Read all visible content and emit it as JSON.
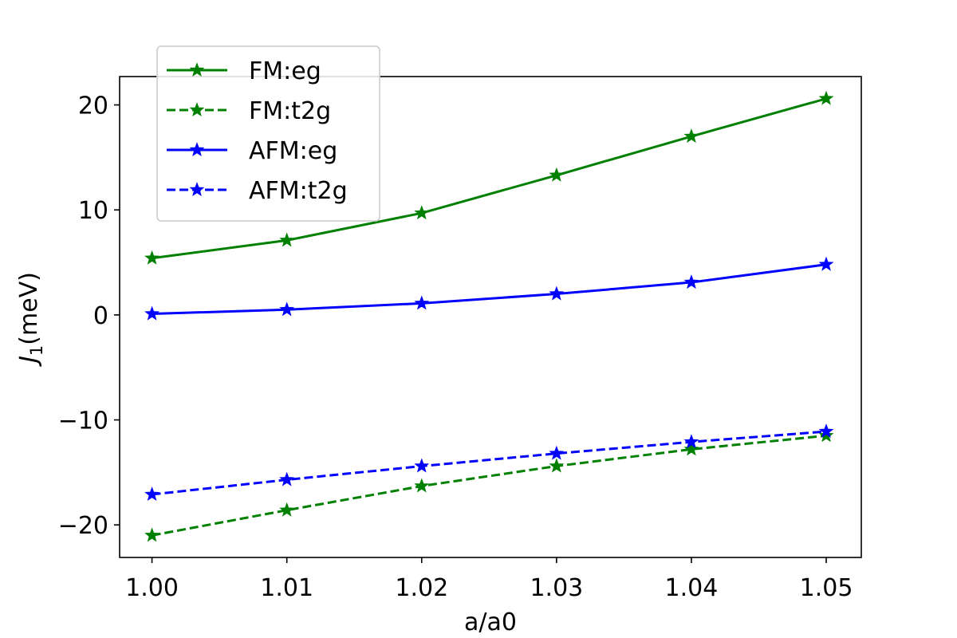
{
  "chart_data": {
    "type": "line",
    "title": "",
    "xlabel": "a/a0",
    "ylabel_main": "J",
    "ylabel_sub": "1",
    "ylabel_unit": "(meV)",
    "x": [
      1.0,
      1.01,
      1.02,
      1.03,
      1.04,
      1.05
    ],
    "xlim": [
      0.9976,
      1.0526
    ],
    "ylim": [
      -23.1,
      22.7
    ],
    "xticks": [
      1.0,
      1.01,
      1.02,
      1.03,
      1.04,
      1.05
    ],
    "xtick_labels": [
      "1.00",
      "1.01",
      "1.02",
      "1.03",
      "1.04",
      "1.05"
    ],
    "yticks": [
      20,
      10,
      0,
      -10,
      -20
    ],
    "ytick_labels": [
      "20",
      "10",
      "0",
      "−10",
      "−20"
    ],
    "grid": false,
    "legend_position": "top-left",
    "series": [
      {
        "name": "FM:eg",
        "color": "#008000",
        "style": "solid",
        "marker": "star",
        "values": [
          5.4,
          7.1,
          9.7,
          13.3,
          17.0,
          20.6
        ]
      },
      {
        "name": "FM:t2g",
        "color": "#008000",
        "style": "dashed",
        "marker": "star",
        "values": [
          -21.0,
          -18.6,
          -16.3,
          -14.4,
          -12.8,
          -11.5
        ]
      },
      {
        "name": "AFM:eg",
        "color": "#0000ff",
        "style": "solid",
        "marker": "star",
        "values": [
          0.1,
          0.5,
          1.1,
          2.0,
          3.1,
          4.8
        ]
      },
      {
        "name": "AFM:t2g",
        "color": "#0000ff",
        "style": "dashed",
        "marker": "star",
        "values": [
          -17.1,
          -15.7,
          -14.4,
          -13.2,
          -12.1,
          -11.1
        ]
      }
    ]
  }
}
